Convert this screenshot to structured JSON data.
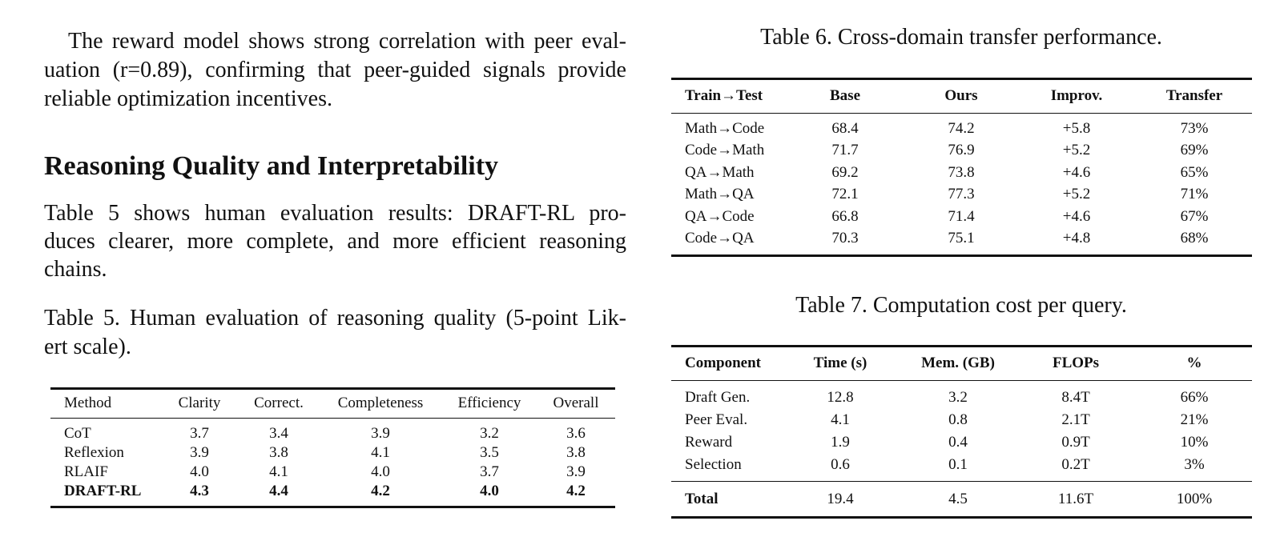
{
  "left": {
    "para1_lines": [
      "The reward model shows strong correlation with peer eval-",
      "uation (r=0.89), confirming that peer-guided signals provide",
      "reliable optimization incentives."
    ],
    "heading": "Reasoning Quality and Interpretability",
    "para2_lines": [
      "Table 5 shows human evaluation results:  DRAFT-RL pro-",
      "duces clearer, more complete, and more efficient reasoning",
      "chains."
    ],
    "table5_caption_lines": [
      "Table 5. Human evaluation of reasoning quality (5-point Lik-",
      "ert scale)."
    ]
  },
  "table5": {
    "headers": [
      "Method",
      "Clarity",
      "Correct.",
      "Completeness",
      "Efficiency",
      "Overall"
    ],
    "rows": [
      [
        "CoT",
        "3.7",
        "3.4",
        "3.9",
        "3.2",
        "3.6"
      ],
      [
        "Reflexion",
        "3.9",
        "3.8",
        "4.1",
        "3.5",
        "3.8"
      ],
      [
        "RLAIF",
        "4.0",
        "4.1",
        "4.0",
        "3.7",
        "3.9"
      ],
      [
        "DRAFT-RL",
        "4.3",
        "4.4",
        "4.2",
        "4.0",
        "4.2"
      ]
    ],
    "bold_row": 3
  },
  "table6": {
    "caption": "Table 6. Cross-domain transfer performance.",
    "headers": [
      "Train→Test",
      "Base",
      "Ours",
      "Improv.",
      "Transfer"
    ],
    "rows": [
      [
        "Math→Code",
        "68.4",
        "74.2",
        "+5.8",
        "73%"
      ],
      [
        "Code→Math",
        "71.7",
        "76.9",
        "+5.2",
        "69%"
      ],
      [
        "QA→Math",
        "69.2",
        "73.8",
        "+4.6",
        "65%"
      ],
      [
        "Math→QA",
        "72.1",
        "77.3",
        "+5.2",
        "71%"
      ],
      [
        "QA→Code",
        "66.8",
        "71.4",
        "+4.6",
        "67%"
      ],
      [
        "Code→QA",
        "70.3",
        "75.1",
        "+4.8",
        "68%"
      ]
    ]
  },
  "table7": {
    "caption": "Table 7. Computation cost per query.",
    "headers": [
      "Component",
      "Time (s)",
      "Mem. (GB)",
      "FLOPs",
      "%"
    ],
    "rows": [
      [
        "Draft Gen.",
        "12.8",
        "3.2",
        "8.4T",
        "66%"
      ],
      [
        "Peer Eval.",
        "4.1",
        "0.8",
        "2.1T",
        "21%"
      ],
      [
        "Reward",
        "1.9",
        "0.4",
        "0.9T",
        "10%"
      ],
      [
        "Selection",
        "0.6",
        "0.1",
        "0.2T",
        "3%"
      ]
    ],
    "total": [
      "Total",
      "19.4",
      "4.5",
      "11.6T",
      "100%"
    ]
  }
}
